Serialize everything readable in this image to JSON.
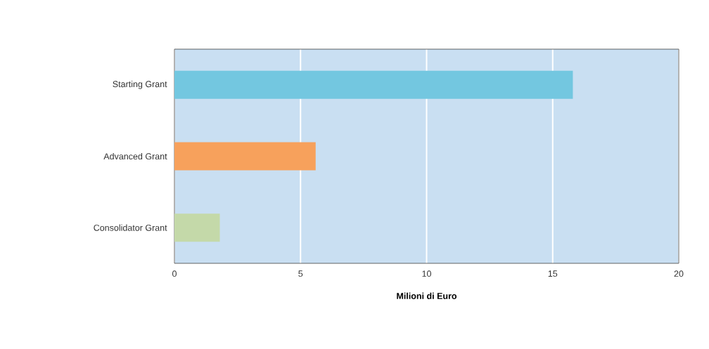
{
  "chart_data": {
    "type": "bar",
    "orientation": "horizontal",
    "xlabel": "Milioni di Euro",
    "categories": [
      "Starting Grant",
      "Advanced Grant",
      "Consolidator Grant"
    ],
    "values": [
      15.8,
      5.6,
      1.8
    ],
    "colors": [
      "#73c7e0",
      "#f7a15c",
      "#c4d9a9"
    ],
    "xlim": [
      0,
      20
    ],
    "xticks": [
      0,
      5,
      10,
      15,
      20
    ],
    "grid": "x"
  }
}
